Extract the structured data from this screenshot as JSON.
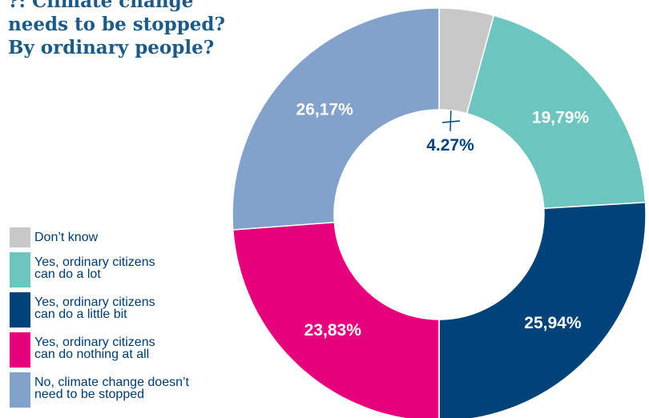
{
  "title_lines": [
    "?: Climate change",
    "needs to be stopped?",
    "By ordinary people?"
  ],
  "chart_data": {
    "type": "pie",
    "donut": true,
    "title": "?: Climate change needs to be stopped? By ordinary people?",
    "categories": [
      "Don’t know",
      "Yes, ordinary citizens\ncan do a lot",
      "Yes, ordinary citizens\ncan do a little bit",
      "Yes, ordinary citizens\ncan do nothing at all",
      "No, climate change doesn’t\nneed to be stopped"
    ],
    "values": [
      4.27,
      19.79,
      25.94,
      23.83,
      26.17
    ],
    "data_labels": [
      "4.27%",
      "19,79%",
      "25,94%",
      "23,83%",
      "26,17%"
    ],
    "colors": [
      "#c8c8c8",
      "#6cc5bf",
      "#004378",
      "#e6007e",
      "#82a1cb"
    ],
    "label_colors": [
      "#004378",
      "#ffffff",
      "#ffffff",
      "#ffffff",
      "#ffffff"
    ],
    "legend_position": "left"
  }
}
